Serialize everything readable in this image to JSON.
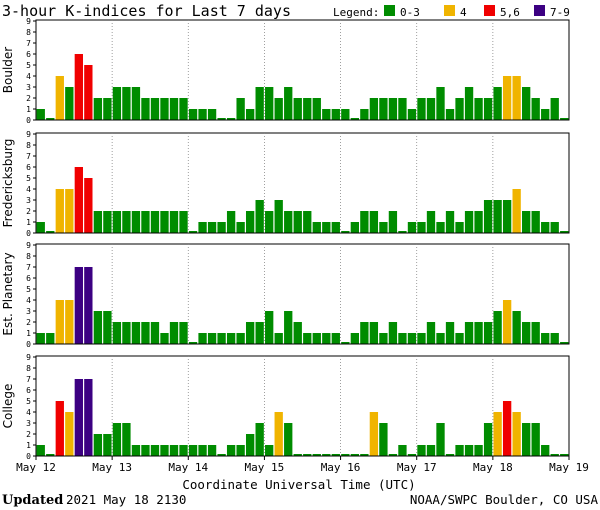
{
  "header": {
    "title": "3-hour K-indices for Last 7 days",
    "legend_label": "Legend:",
    "legend": [
      {
        "label": "0-3",
        "color": "#008c00"
      },
      {
        "label": "4",
        "color": "#f0b400"
      },
      {
        "label": "5,6",
        "color": "#f00000"
      },
      {
        "label": "7-9",
        "color": "#3c0082"
      }
    ]
  },
  "footer": {
    "updated_label": "Updated",
    "updated_value": "2021 May 18 2130",
    "credit": "NOAA/SWPC Boulder, CO USA"
  },
  "chart_data": {
    "type": "bar",
    "xlabel": "Coordinate Universal Time (UTC)",
    "x_ticks": [
      "May 12",
      "May 13",
      "May 14",
      "May 15",
      "May 16",
      "May 17",
      "May 18",
      "May 19"
    ],
    "ylim": [
      0,
      9
    ],
    "y_ticks": [
      0,
      1,
      2,
      3,
      4,
      5,
      6,
      7,
      8,
      9
    ],
    "bars_per_day": 8,
    "panels": [
      {
        "name": "Boulder",
        "values": [
          1,
          0,
          4,
          3,
          6,
          5,
          2,
          2,
          3,
          3,
          3,
          2,
          2,
          2,
          2,
          2,
          1,
          1,
          1,
          0,
          0,
          2,
          1,
          3,
          3,
          2,
          3,
          2,
          2,
          2,
          1,
          1,
          1,
          0,
          1,
          2,
          2,
          2,
          2,
          1,
          2,
          2,
          3,
          1,
          2,
          3,
          2,
          2,
          3,
          4,
          4,
          3,
          2,
          1,
          2,
          0
        ]
      },
      {
        "name": "Fredericksburg",
        "values": [
          1,
          0,
          4,
          4,
          6,
          5,
          2,
          2,
          2,
          2,
          2,
          2,
          2,
          2,
          2,
          2,
          0,
          1,
          1,
          1,
          2,
          1,
          2,
          3,
          2,
          3,
          2,
          2,
          2,
          1,
          1,
          1,
          0,
          1,
          2,
          2,
          1,
          2,
          0,
          1,
          1,
          2,
          1,
          2,
          1,
          2,
          2,
          3,
          3,
          3,
          4,
          2,
          2,
          1,
          1,
          0
        ]
      },
      {
        "name": "Est. Planetary",
        "values": [
          1,
          1,
          4,
          4,
          7,
          7,
          3,
          3,
          2,
          2,
          2,
          2,
          2,
          1,
          2,
          2,
          0,
          1,
          1,
          1,
          1,
          1,
          2,
          2,
          3,
          1,
          3,
          2,
          1,
          1,
          1,
          1,
          0,
          1,
          2,
          2,
          1,
          2,
          1,
          1,
          1,
          2,
          1,
          2,
          1,
          2,
          2,
          2,
          3,
          4,
          3,
          2,
          2,
          1,
          1,
          0
        ]
      },
      {
        "name": "College",
        "values": [
          1,
          0,
          5,
          4,
          7,
          7,
          2,
          2,
          3,
          3,
          1,
          1,
          1,
          1,
          1,
          1,
          1,
          1,
          1,
          0,
          1,
          1,
          2,
          3,
          1,
          4,
          3,
          0,
          0,
          0,
          0,
          0,
          0,
          0,
          0,
          4,
          3,
          0,
          1,
          0,
          1,
          1,
          3,
          0,
          1,
          1,
          1,
          3,
          4,
          5,
          4,
          3,
          3,
          1,
          0,
          0
        ]
      }
    ]
  }
}
